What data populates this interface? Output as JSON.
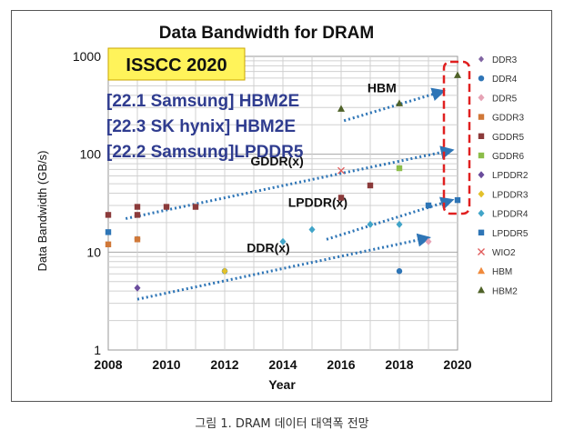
{
  "caption": "그림 1. DRAM 데이터 대역폭 전망",
  "chart_data": {
    "type": "scatter",
    "title": "Data Bandwidth for DRAM",
    "xlabel": "Year",
    "ylabel": "Data Bandwidth (GB/s)",
    "xlim": [
      2008,
      2020
    ],
    "ylim": [
      1,
      1000
    ],
    "y_scale": "log",
    "xticks": [
      "2008",
      "2010",
      "2012",
      "2014",
      "2016",
      "2018",
      "2020"
    ],
    "yticks": [
      "1",
      "10",
      "100",
      "1000"
    ],
    "grid": true,
    "legend_position": "right",
    "badge": "ISSCC 2020",
    "papers": [
      "[22.1 Samsung] HBM2E",
      "[22.3 SK hynix] HBM2E",
      "[22.2 Samsung]LPDDR5"
    ],
    "series": [
      {
        "name": "DDR3",
        "color": "#8064a2",
        "marker": "circle-small",
        "points": [
          [
            2009,
            4.3
          ],
          [
            2012,
            6.4
          ],
          [
            2018,
            6.4
          ]
        ]
      },
      {
        "name": "DDR4",
        "color": "#2e75b6",
        "marker": "circle",
        "points": [
          [
            2009,
            13.6
          ],
          [
            2012,
            6.4
          ],
          [
            2018,
            6.4
          ]
        ]
      },
      {
        "name": "DDR5",
        "color": "#e6a3b5",
        "marker": "diamond",
        "points": [
          [
            2019,
            12.8
          ]
        ]
      },
      {
        "name": "GDDR3",
        "color": "#d07838",
        "marker": "square",
        "points": [
          [
            2008,
            12
          ],
          [
            2009,
            13.5
          ]
        ]
      },
      {
        "name": "GDDR5",
        "color": "#8b3a3a",
        "marker": "square",
        "points": [
          [
            2008,
            24
          ],
          [
            2009,
            24
          ],
          [
            2009,
            29
          ],
          [
            2010,
            29
          ],
          [
            2011,
            29
          ],
          [
            2016,
            36
          ],
          [
            2017,
            48
          ]
        ]
      },
      {
        "name": "GDDR6",
        "color": "#8cbd4a",
        "marker": "square",
        "points": [
          [
            2018,
            72
          ]
        ]
      },
      {
        "name": "LPDDR2",
        "color": "#6a4c9c",
        "marker": "diamond",
        "points": [
          [
            2009,
            4.3
          ]
        ]
      },
      {
        "name": "LPDDR3",
        "color": "#e3c12b",
        "marker": "diamond",
        "points": [
          [
            2012,
            6.4
          ]
        ]
      },
      {
        "name": "LPDDR4",
        "color": "#40a4c8",
        "marker": "diamond",
        "points": [
          [
            2014,
            12.8
          ],
          [
            2015,
            17
          ],
          [
            2017,
            19.2
          ],
          [
            2018,
            19.2
          ]
        ]
      },
      {
        "name": "LPDDR5",
        "color": "#2e75b6",
        "marker": "square",
        "points": [
          [
            2008,
            16
          ],
          [
            2019,
            30
          ],
          [
            2020,
            34
          ]
        ]
      },
      {
        "name": "WIO2",
        "color": "#e05a5a",
        "marker": "x",
        "points": [
          [
            2016,
            68
          ]
        ]
      },
      {
        "name": "HBM",
        "color": "#f08a3c",
        "marker": "triangle",
        "points": []
      },
      {
        "name": "HBM2",
        "color": "#4f6228",
        "marker": "triangle",
        "points": [
          [
            2016,
            290
          ],
          [
            2018,
            330
          ],
          [
            2020,
            640
          ]
        ]
      }
    ],
    "annotations": [
      {
        "label": "HBM",
        "text_at": [
          2017.4,
          430
        ],
        "arrow": [
          [
            2016.1,
            220
          ],
          [
            2019.5,
            440
          ]
        ]
      },
      {
        "label": "GDDR(x)",
        "text_at": [
          2013.8,
          77
        ],
        "arrow": [
          [
            2008.6,
            22
          ],
          [
            2019.8,
            110
          ]
        ]
      },
      {
        "label": "LPDDR(x)",
        "text_at": [
          2015.2,
          29
        ],
        "arrow": [
          [
            2015.5,
            13.5
          ],
          [
            2019.8,
            34
          ]
        ]
      },
      {
        "label": "DDR(x)",
        "text_at": [
          2013.5,
          10
        ],
        "arrow": [
          [
            2009,
            3.3
          ],
          [
            2019,
            14
          ]
        ]
      }
    ],
    "highlight_year": 2020
  }
}
